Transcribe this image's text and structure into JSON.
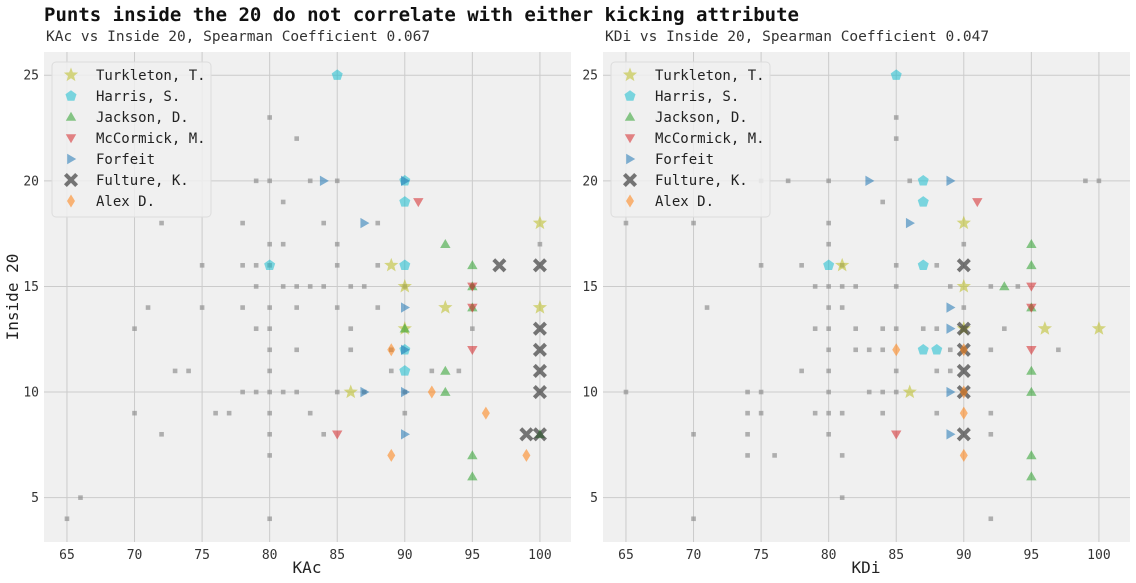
{
  "suptitle": "Punts inside the 20 do not correlate with either kicking attribute",
  "colors": {
    "background": "#ffffff",
    "panel": "#f0f0f0",
    "grid": "#cbcbcb",
    "other": "#8b8b8b",
    "Turkleton, T.": "#bcbd22",
    "Harris, S.": "#17becf",
    "Jackson, D.": "#2ca02c",
    "McCormick, M.": "#d62728",
    "Forfeit": "#1f77b4",
    "Fulture, K.": "#222222",
    "Alex D.": "#ff7f0e"
  },
  "chart_data": [
    {
      "type": "scatter",
      "subtitle": "KAc vs Inside 20, Spearman Coefficient 0.067",
      "xlabel": "KAc",
      "ylabel": "Inside 20",
      "xlim": [
        63.3,
        102.3
      ],
      "ylim": [
        2.9,
        26.1
      ],
      "xticks": [
        "65",
        "70",
        "75",
        "80",
        "85",
        "90",
        "95",
        "100"
      ],
      "yticks": [
        "5",
        "10",
        "15",
        "20",
        "25"
      ],
      "grid": true,
      "legend": "top-left",
      "others": [
        [
          65,
          4
        ],
        [
          66,
          5
        ],
        [
          70,
          9
        ],
        [
          70,
          13
        ],
        [
          71,
          14
        ],
        [
          72,
          8
        ],
        [
          72,
          18
        ],
        [
          73,
          11
        ],
        [
          74,
          11
        ],
        [
          75,
          14
        ],
        [
          75,
          16
        ],
        [
          76,
          9
        ],
        [
          77,
          9
        ],
        [
          78,
          10
        ],
        [
          78,
          14
        ],
        [
          78,
          16
        ],
        [
          78,
          18
        ],
        [
          79,
          10
        ],
        [
          79,
          13
        ],
        [
          79,
          15
        ],
        [
          79,
          16
        ],
        [
          79,
          20
        ],
        [
          80,
          4
        ],
        [
          80,
          7
        ],
        [
          80,
          8
        ],
        [
          80,
          9
        ],
        [
          80,
          10
        ],
        [
          80,
          11
        ],
        [
          80,
          12
        ],
        [
          80,
          13
        ],
        [
          80,
          14
        ],
        [
          80,
          16
        ],
        [
          80,
          17
        ],
        [
          80,
          20
        ],
        [
          80,
          23
        ],
        [
          81,
          10
        ],
        [
          81,
          15
        ],
        [
          81,
          17
        ],
        [
          81,
          19
        ],
        [
          82,
          10
        ],
        [
          82,
          12
        ],
        [
          82,
          14
        ],
        [
          82,
          15
        ],
        [
          82,
          22
        ],
        [
          83,
          9
        ],
        [
          83,
          15
        ],
        [
          83,
          20
        ],
        [
          84,
          8
        ],
        [
          84,
          15
        ],
        [
          84,
          18
        ],
        [
          85,
          10
        ],
        [
          85,
          14
        ],
        [
          85,
          16
        ],
        [
          85,
          17
        ],
        [
          85,
          20
        ],
        [
          86,
          12
        ],
        [
          86,
          13
        ],
        [
          86,
          15
        ],
        [
          87,
          10
        ],
        [
          87,
          15
        ],
        [
          88,
          14
        ],
        [
          88,
          16
        ],
        [
          88,
          18
        ],
        [
          89,
          11
        ],
        [
          89,
          12
        ],
        [
          90,
          9
        ],
        [
          90,
          10
        ],
        [
          90,
          15
        ],
        [
          92,
          11
        ],
        [
          94,
          11
        ],
        [
          95,
          13
        ],
        [
          95,
          15
        ],
        [
          100,
          17
        ]
      ],
      "series": [
        {
          "name": "Turkleton, T.",
          "marker": "star",
          "points": [
            [
              86,
              10
            ],
            [
              89,
              16
            ],
            [
              90,
              13
            ],
            [
              90,
              15
            ],
            [
              93,
              14
            ],
            [
              100,
              14
            ],
            [
              100,
              18
            ]
          ]
        },
        {
          "name": "Harris, S.",
          "marker": "pentagon",
          "points": [
            [
              80,
              16
            ],
            [
              85,
              25
            ],
            [
              90,
              11
            ],
            [
              90,
              12
            ],
            [
              90,
              16
            ],
            [
              90,
              19
            ],
            [
              90,
              20
            ]
          ]
        },
        {
          "name": "Jackson, D.",
          "marker": "triangle-up",
          "points": [
            [
              90,
              13
            ],
            [
              93,
              10
            ],
            [
              93,
              11
            ],
            [
              93,
              17
            ],
            [
              95,
              6
            ],
            [
              95,
              7
            ],
            [
              95,
              14
            ],
            [
              95,
              15
            ],
            [
              95,
              16
            ],
            [
              100,
              8
            ]
          ]
        },
        {
          "name": "McCormick, M.",
          "marker": "triangle-down",
          "points": [
            [
              85,
              8
            ],
            [
              91,
              19
            ],
            [
              95,
              12
            ],
            [
              95,
              14
            ],
            [
              95,
              15
            ]
          ]
        },
        {
          "name": "Forfeit",
          "marker": "triangle-right",
          "points": [
            [
              84,
              20
            ],
            [
              87,
              10
            ],
            [
              87,
              18
            ],
            [
              90,
              8
            ],
            [
              90,
              10
            ],
            [
              90,
              12
            ],
            [
              90,
              14
            ],
            [
              90,
              20
            ]
          ]
        },
        {
          "name": "Fulture, K.",
          "marker": "x",
          "points": [
            [
              97,
              16
            ],
            [
              99,
              8
            ],
            [
              100,
              8
            ],
            [
              100,
              10
            ],
            [
              100,
              11
            ],
            [
              100,
              12
            ],
            [
              100,
              13
            ],
            [
              100,
              16
            ]
          ]
        },
        {
          "name": "Alex D.",
          "marker": "diamond",
          "points": [
            [
              89,
              7
            ],
            [
              89,
              12
            ],
            [
              92,
              10
            ],
            [
              96,
              9
            ],
            [
              99,
              7
            ]
          ]
        }
      ]
    },
    {
      "type": "scatter",
      "subtitle": "KDi vs Inside 20, Spearman Coefficient 0.047",
      "xlabel": "KDi",
      "ylabel": "",
      "xlim": [
        63.3,
        102.3
      ],
      "ylim": [
        2.9,
        26.1
      ],
      "xticks": [
        "65",
        "70",
        "75",
        "80",
        "85",
        "90",
        "95",
        "100"
      ],
      "yticks": [
        "5",
        "10",
        "15",
        "20",
        "25"
      ],
      "grid": true,
      "legend": "top-left",
      "others": [
        [
          65,
          10
        ],
        [
          65,
          18
        ],
        [
          70,
          4
        ],
        [
          70,
          8
        ],
        [
          70,
          18
        ],
        [
          71,
          14
        ],
        [
          74,
          7
        ],
        [
          74,
          8
        ],
        [
          74,
          9
        ],
        [
          74,
          10
        ],
        [
          75,
          9
        ],
        [
          75,
          10
        ],
        [
          75,
          16
        ],
        [
          75,
          20
        ],
        [
          76,
          7
        ],
        [
          77,
          20
        ],
        [
          78,
          11
        ],
        [
          78,
          16
        ],
        [
          79,
          9
        ],
        [
          79,
          13
        ],
        [
          79,
          15
        ],
        [
          80,
          8
        ],
        [
          80,
          9
        ],
        [
          80,
          10
        ],
        [
          80,
          11
        ],
        [
          80,
          12
        ],
        [
          80,
          13
        ],
        [
          80,
          14
        ],
        [
          80,
          15
        ],
        [
          80,
          17
        ],
        [
          80,
          18
        ],
        [
          80,
          20
        ],
        [
          81,
          5
        ],
        [
          81,
          7
        ],
        [
          81,
          9
        ],
        [
          81,
          14
        ],
        [
          81,
          15
        ],
        [
          81,
          16
        ],
        [
          82,
          12
        ],
        [
          82,
          13
        ],
        [
          82,
          15
        ],
        [
          83,
          10
        ],
        [
          83,
          12
        ],
        [
          84,
          9
        ],
        [
          84,
          10
        ],
        [
          84,
          12
        ],
        [
          84,
          13
        ],
        [
          84,
          19
        ],
        [
          85,
          10
        ],
        [
          85,
          11
        ],
        [
          85,
          13
        ],
        [
          85,
          15
        ],
        [
          85,
          16
        ],
        [
          85,
          22
        ],
        [
          85,
          23
        ],
        [
          86,
          20
        ],
        [
          87,
          13
        ],
        [
          88,
          9
        ],
        [
          88,
          11
        ],
        [
          88,
          13
        ],
        [
          88,
          16
        ],
        [
          89,
          11
        ],
        [
          89,
          12
        ],
        [
          89,
          15
        ],
        [
          90,
          14
        ],
        [
          90,
          17
        ],
        [
          92,
          4
        ],
        [
          92,
          8
        ],
        [
          92,
          9
        ],
        [
          92,
          12
        ],
        [
          92,
          15
        ],
        [
          93,
          13
        ],
        [
          94,
          15
        ],
        [
          97,
          12
        ],
        [
          99,
          20
        ],
        [
          100,
          20
        ]
      ],
      "series": [
        {
          "name": "Turkleton, T.",
          "marker": "star",
          "points": [
            [
              81,
              16
            ],
            [
              86,
              10
            ],
            [
              90,
              13
            ],
            [
              90,
              15
            ],
            [
              90,
              18
            ],
            [
              96,
              13
            ],
            [
              100,
              13
            ]
          ]
        },
        {
          "name": "Harris, S.",
          "marker": "pentagon",
          "points": [
            [
              80,
              16
            ],
            [
              85,
              25
            ],
            [
              87,
              12
            ],
            [
              87,
              16
            ],
            [
              87,
              19
            ],
            [
              87,
              20
            ],
            [
              88,
              12
            ]
          ]
        },
        {
          "name": "Jackson, D.",
          "marker": "triangle-up",
          "points": [
            [
              93,
              15
            ],
            [
              95,
              6
            ],
            [
              95,
              7
            ],
            [
              95,
              10
            ],
            [
              95,
              11
            ],
            [
              95,
              14
            ],
            [
              95,
              16
            ],
            [
              95,
              17
            ]
          ]
        },
        {
          "name": "McCormick, M.",
          "marker": "triangle-down",
          "points": [
            [
              85,
              8
            ],
            [
              91,
              19
            ],
            [
              95,
              12
            ],
            [
              95,
              14
            ],
            [
              95,
              15
            ]
          ]
        },
        {
          "name": "Forfeit",
          "marker": "triangle-right",
          "points": [
            [
              83,
              20
            ],
            [
              86,
              18
            ],
            [
              89,
              8
            ],
            [
              89,
              10
            ],
            [
              89,
              13
            ],
            [
              89,
              14
            ],
            [
              89,
              20
            ]
          ]
        },
        {
          "name": "Fulture, K.",
          "marker": "x",
          "points": [
            [
              90,
              8
            ],
            [
              90,
              10
            ],
            [
              90,
              11
            ],
            [
              90,
              12
            ],
            [
              90,
              13
            ],
            [
              90,
              16
            ]
          ]
        },
        {
          "name": "Alex D.",
          "marker": "diamond",
          "points": [
            [
              85,
              12
            ],
            [
              90,
              7
            ],
            [
              90,
              9
            ],
            [
              90,
              10
            ],
            [
              90,
              12
            ]
          ]
        }
      ]
    }
  ]
}
